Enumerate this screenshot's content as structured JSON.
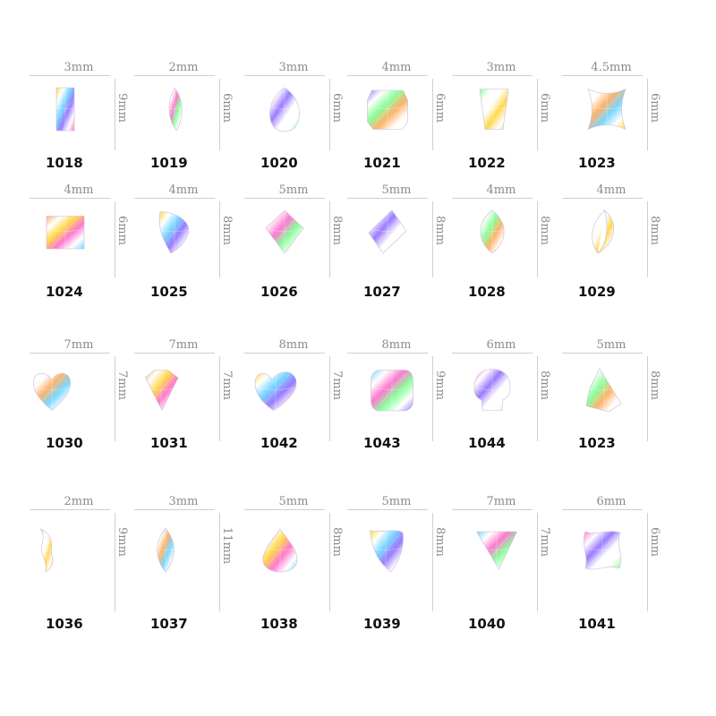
{
  "catalog": {
    "items": [
      {
        "code": "1018",
        "width": "3mm",
        "height": "9mm",
        "shape": "baguette"
      },
      {
        "code": "1019",
        "width": "2mm",
        "height": "6mm",
        "shape": "narrow-teardrop"
      },
      {
        "code": "1020",
        "width": "3mm",
        "height": "6mm",
        "shape": "pear"
      },
      {
        "code": "1021",
        "width": "4mm",
        "height": "6mm",
        "shape": "cushion-rectangle"
      },
      {
        "code": "1022",
        "width": "3mm",
        "height": "6mm",
        "shape": "trapezoid"
      },
      {
        "code": "1023",
        "width": "4.5mm",
        "height": "6mm",
        "shape": "bowtie"
      },
      {
        "code": "1024",
        "width": "4mm",
        "height": "6mm",
        "shape": "rectangle"
      },
      {
        "code": "1025",
        "width": "4mm",
        "height": "8mm",
        "shape": "flame"
      },
      {
        "code": "1026",
        "width": "5mm",
        "height": "8mm",
        "shape": "kite"
      },
      {
        "code": "1027",
        "width": "5mm",
        "height": "8mm",
        "shape": "rhombus"
      },
      {
        "code": "1028",
        "width": "4mm",
        "height": "8mm",
        "shape": "marquise"
      },
      {
        "code": "1029",
        "width": "4mm",
        "height": "8mm",
        "shape": "crescent-marquise"
      },
      {
        "code": "1030",
        "width": "7mm",
        "height": "7mm",
        "shape": "heart"
      },
      {
        "code": "1031",
        "width": "7mm",
        "height": "7mm",
        "shape": "diamond-cut"
      },
      {
        "code": "1042",
        "width": "8mm",
        "height": "7mm",
        "shape": "wide-heart"
      },
      {
        "code": "1043",
        "width": "8mm",
        "height": "9mm",
        "shape": "rounded-square"
      },
      {
        "code": "1044",
        "width": "6mm",
        "height": "8mm",
        "shape": "skull"
      },
      {
        "code": "1023",
        "width": "5mm",
        "height": "8mm",
        "shape": "kite-drop"
      },
      {
        "code": "1036",
        "width": "2mm",
        "height": "9mm",
        "shape": "wave"
      },
      {
        "code": "1037",
        "width": "3mm",
        "height": "11mm",
        "shape": "long-marquise"
      },
      {
        "code": "1038",
        "width": "5mm",
        "height": "8mm",
        "shape": "drop"
      },
      {
        "code": "1039",
        "width": "5mm",
        "height": "8mm",
        "shape": "shield-drop"
      },
      {
        "code": "1040",
        "width": "7mm",
        "height": "7mm",
        "shape": "triangle"
      },
      {
        "code": "1041",
        "width": "6mm",
        "height": "6mm",
        "shape": "star-square"
      }
    ]
  },
  "palette": {
    "label_gray": "#8a8a8a",
    "rule_gray": "#cfcfcf",
    "code_text": "#111111",
    "gem_colors": [
      "#ffd84d",
      "#7ad8ff",
      "#ff7ad1",
      "#9b7bff",
      "#8cff9e",
      "#ffffff",
      "#ffb36b"
    ]
  }
}
